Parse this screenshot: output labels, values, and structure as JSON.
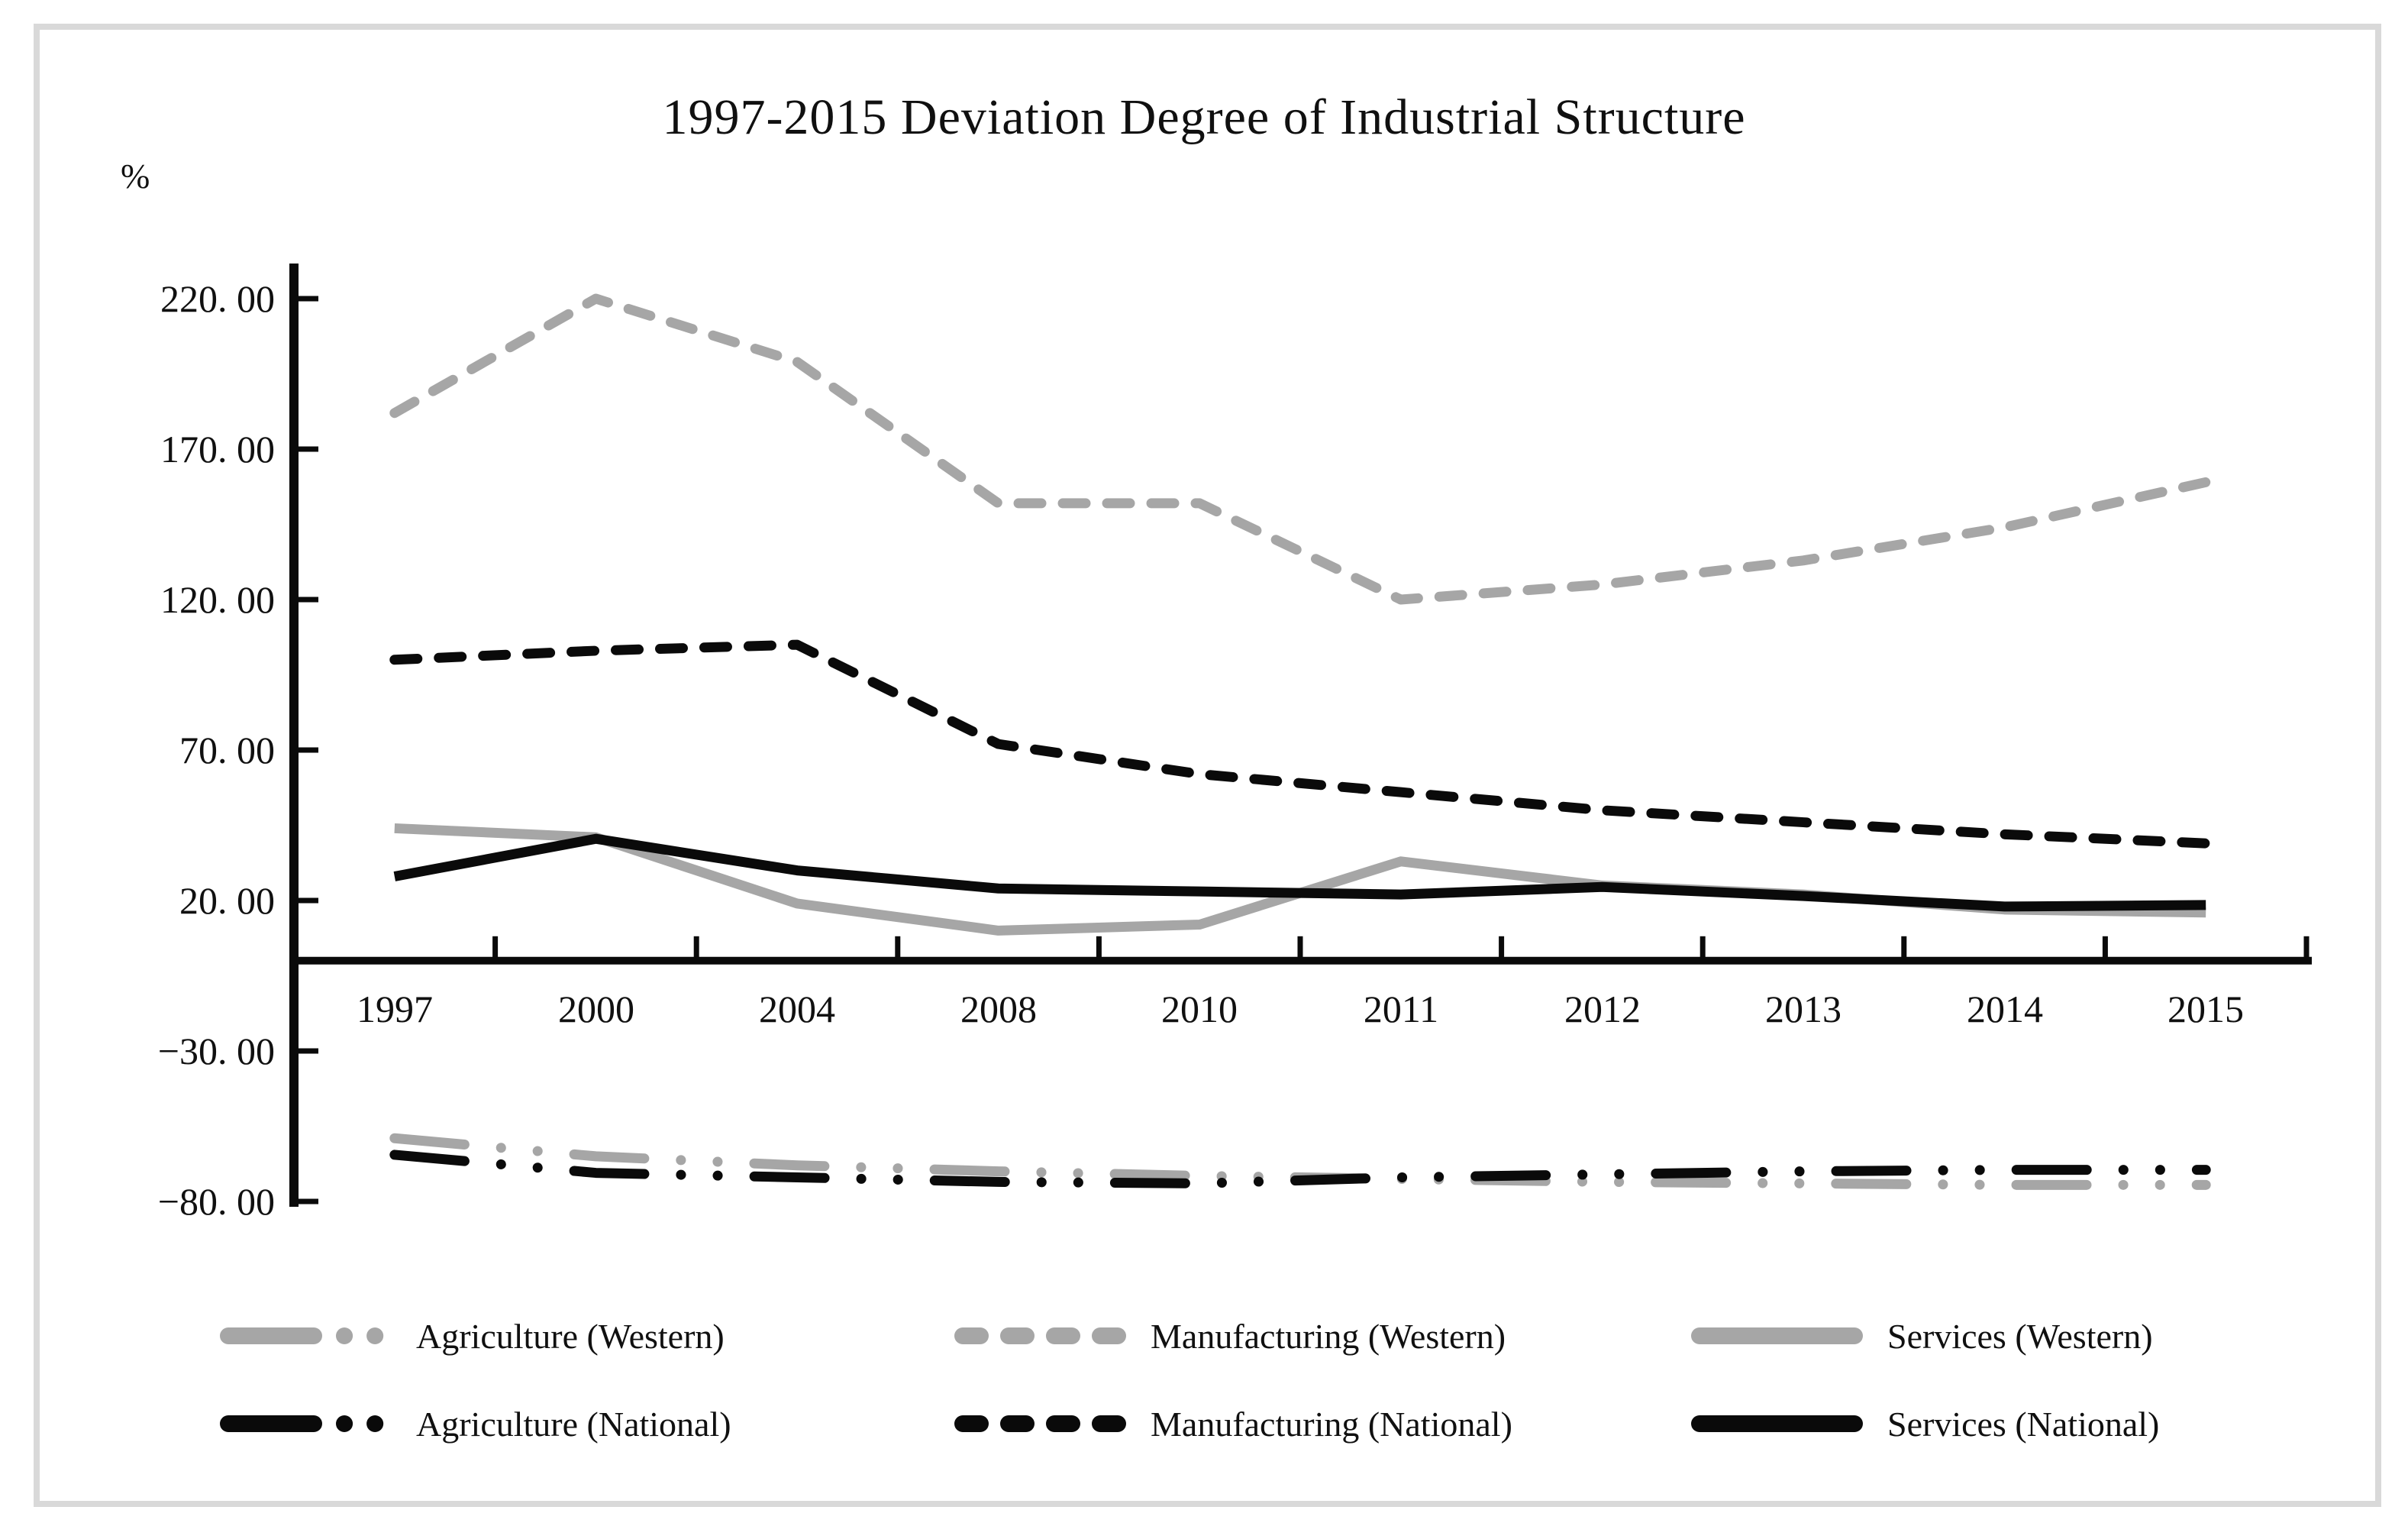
{
  "chart_data": {
    "type": "line",
    "title": "1997-2015 Deviation Degree of Industrial Structure",
    "ylabel": "%",
    "xlabel": "",
    "ylim": [
      -80,
      220
    ],
    "grid": false,
    "legend_position": "bottom",
    "y_ticks": [
      220,
      170,
      120,
      70,
      20,
      -30,
      -80
    ],
    "y_tick_labels": [
      "220. 00",
      "170. 00",
      "120. 00",
      "70. 00",
      "20. 00",
      "−30. 00",
      "−80. 00"
    ],
    "categories": [
      "1997",
      "2000",
      "2004",
      "2008",
      "2010",
      "2011",
      "2012",
      "2013",
      "2014",
      "2015"
    ],
    "series": [
      {
        "name": "Agriculture (Western)",
        "style": "dash-dot-dot",
        "color": "#a6a6a6",
        "values": [
          -59,
          -65,
          -68,
          -70,
          -71.5,
          -72.5,
          -73.5,
          -74,
          -74.5,
          -74.5
        ]
      },
      {
        "name": "Manufacturing (Western)",
        "style": "dashed",
        "color": "#a6a6a6",
        "values": [
          182,
          220,
          199,
          152,
          152,
          120,
          125,
          133,
          144,
          159
        ]
      },
      {
        "name": "Services (Western)",
        "style": "solid",
        "color": "#a6a6a6",
        "values": [
          44,
          41,
          19,
          10,
          12,
          33,
          25,
          22,
          17,
          16
        ]
      },
      {
        "name": "Agriculture (National)",
        "style": "dash-dot-dot",
        "color": "#0a0a0a",
        "values": [
          -64.5,
          -70.5,
          -72,
          -73.5,
          -74,
          -72,
          -71,
          -70,
          -69.5,
          -69.5
        ]
      },
      {
        "name": "Manufacturing (National)",
        "style": "dashed",
        "color": "#0a0a0a",
        "values": [
          100,
          103,
          105,
          72,
          62,
          56,
          50,
          46,
          42,
          39
        ]
      },
      {
        "name": "Services (National)",
        "style": "solid",
        "color": "#0a0a0a",
        "values": [
          28,
          40.5,
          30,
          24,
          23,
          22,
          24.5,
          21.5,
          18,
          18.5
        ]
      }
    ],
    "axis_color": "#0a0a0a"
  }
}
